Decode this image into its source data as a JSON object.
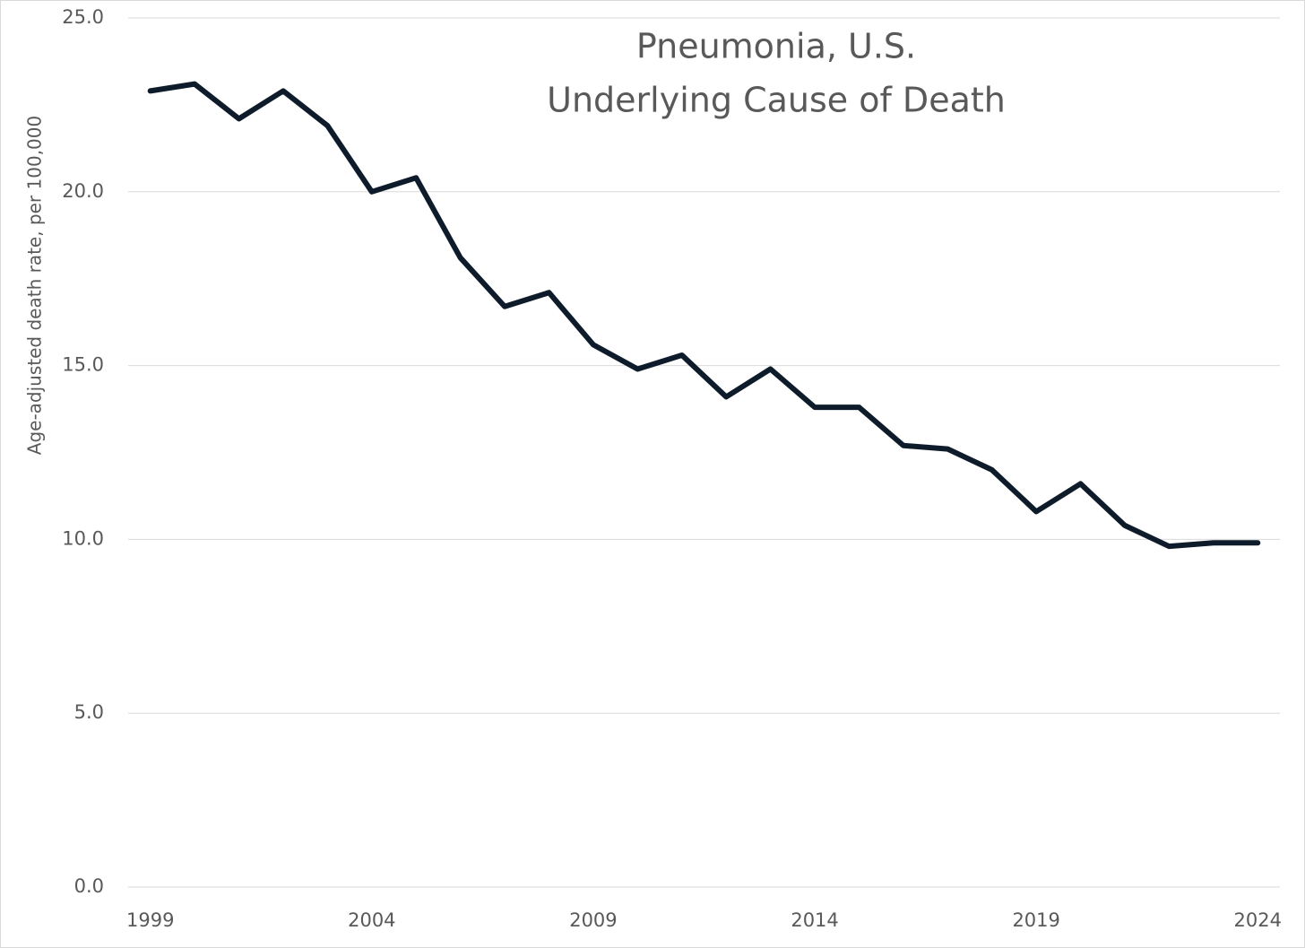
{
  "chart_data": {
    "type": "line",
    "title": [
      "Pneumonia, U.S.",
      "Underlying Cause of Death"
    ],
    "y_label": "Age-adjusted death rate, per 100,000",
    "x": [
      1999,
      2000,
      2001,
      2002,
      2003,
      2004,
      2005,
      2006,
      2007,
      2008,
      2009,
      2010,
      2011,
      2012,
      2013,
      2014,
      2015,
      2016,
      2017,
      2018,
      2019,
      2020,
      2021,
      2022,
      2023,
      2024
    ],
    "values": [
      22.9,
      23.1,
      22.1,
      22.9,
      21.9,
      20.0,
      20.4,
      18.1,
      16.7,
      17.1,
      15.6,
      14.9,
      15.3,
      14.1,
      14.9,
      13.8,
      13.8,
      12.7,
      12.6,
      12.0,
      10.8,
      11.6,
      10.4,
      9.8,
      9.9,
      9.9
    ],
    "color": "#0d1b2a",
    "xlim": [
      1998.5,
      2024.5
    ],
    "xticks": [
      1999,
      2004,
      2009,
      2014,
      2019,
      2024
    ],
    "ylim": [
      0,
      25
    ],
    "yticks": [
      {
        "value": 0,
        "label": "0.0"
      },
      {
        "value": 5,
        "label": "5.0"
      },
      {
        "value": 10,
        "label": "10.0"
      },
      {
        "value": 15,
        "label": "15.0"
      },
      {
        "value": 20,
        "label": "20.0"
      },
      {
        "value": 25,
        "label": "25.0"
      }
    ],
    "grid": true
  }
}
